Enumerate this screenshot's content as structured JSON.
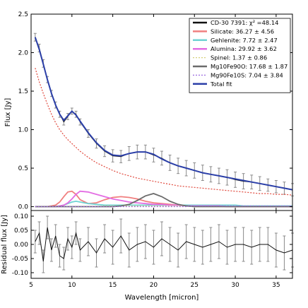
{
  "chart_data": [
    {
      "type": "line",
      "panel": "spectral fit",
      "xlabel": "",
      "ylabel": "Flux [Jy]",
      "xlim": [
        5,
        37
      ],
      "ylim": [
        -0.05,
        2.5
      ],
      "xticks": [
        "5",
        "10",
        "15",
        "20",
        "25",
        "30",
        "35"
      ],
      "yticks": [
        "0.0",
        "0.5",
        "1.0",
        "1.5",
        "2.0",
        "2.5"
      ],
      "grid": false,
      "legend_position": "top-right",
      "x": [
        5.5,
        6,
        6.5,
        7,
        7.5,
        8,
        8.5,
        9,
        9.5,
        10,
        10.5,
        11,
        12,
        13,
        14,
        15,
        16,
        17,
        18,
        19,
        20,
        21,
        22,
        23,
        24,
        25,
        26,
        27,
        28,
        29,
        30,
        31,
        32,
        33,
        34,
        35,
        36,
        37
      ],
      "series": [
        {
          "name": "CD-30 7391",
          "legend_label": "CD-30 7391:",
          "legend_stat": "χ² =48.14",
          "style": "data with error bars",
          "color": "#111111",
          "values": [
            2.2,
            2.06,
            1.86,
            1.65,
            1.47,
            1.32,
            1.2,
            1.1,
            1.17,
            1.24,
            1.2,
            1.1,
            0.95,
            0.82,
            0.72,
            0.66,
            0.65,
            0.69,
            0.71,
            0.71,
            0.67,
            0.63,
            0.57,
            0.53,
            0.5,
            0.47,
            0.44,
            0.42,
            0.4,
            0.38,
            0.35,
            0.33,
            0.32,
            0.3,
            0.28,
            0.26,
            0.24,
            0.22
          ],
          "errors": [
            0.05,
            0.05,
            0.05,
            0.04,
            0.04,
            0.04,
            0.04,
            0.04,
            0.04,
            0.04,
            0.04,
            0.04,
            0.05,
            0.06,
            0.07,
            0.08,
            0.08,
            0.09,
            0.09,
            0.09,
            0.09,
            0.09,
            0.1,
            0.1,
            0.1,
            0.1,
            0.1,
            0.1,
            0.1,
            0.1,
            0.1,
            0.1,
            0.09,
            0.09,
            0.08,
            0.08,
            0.08,
            0.08
          ]
        },
        {
          "name": "Silicate",
          "legend_label": "Silicate:",
          "legend_stat": "36.27 ± 4.56",
          "style": "solid",
          "color": "#f07f7f",
          "values": [
            0.0,
            0.0,
            0.0,
            0.0,
            0.01,
            0.02,
            0.06,
            0.13,
            0.19,
            0.2,
            0.16,
            0.09,
            0.04,
            0.05,
            0.09,
            0.12,
            0.13,
            0.12,
            0.1,
            0.07,
            0.05,
            0.04,
            0.03,
            0.02,
            0.02,
            0.01,
            0.01,
            0.01,
            0.01,
            0.0,
            0.0,
            0.0,
            0.0,
            0.0,
            0.0,
            0.0,
            0.0,
            0.0
          ]
        },
        {
          "name": "Gehlenite",
          "legend_label": "Gehlenite:",
          "legend_stat": "7.72 ± 2.47",
          "style": "solid",
          "color": "#6fd3d3",
          "values": [
            0.0,
            0.0,
            0.0,
            0.0,
            0.0,
            0.0,
            0.01,
            0.02,
            0.04,
            0.06,
            0.07,
            0.06,
            0.04,
            0.03,
            0.02,
            0.02,
            0.02,
            0.02,
            0.02,
            0.02,
            0.02,
            0.02,
            0.02,
            0.02,
            0.02,
            0.02,
            0.02,
            0.02,
            0.02,
            0.02,
            0.02,
            0.01,
            0.01,
            0.01,
            0.01,
            0.01,
            0.01,
            0.01
          ]
        },
        {
          "name": "Alumina",
          "legend_label": "Alumina:",
          "legend_stat": "29.92 ± 3.62",
          "style": "solid",
          "color": "#e36de3",
          "values": [
            0.0,
            0.0,
            0.0,
            0.0,
            0.0,
            0.0,
            0.01,
            0.02,
            0.05,
            0.1,
            0.16,
            0.2,
            0.19,
            0.16,
            0.13,
            0.1,
            0.08,
            0.06,
            0.05,
            0.04,
            0.03,
            0.03,
            0.02,
            0.02,
            0.01,
            0.01,
            0.01,
            0.01,
            0.01,
            0.0,
            0.0,
            0.0,
            0.0,
            0.0,
            0.0,
            0.0,
            0.0,
            0.0
          ]
        },
        {
          "name": "Spinel",
          "legend_label": "Spinel:",
          "legend_stat": "1.37 ± 0.86",
          "style": "dotted",
          "color": "#d6cf7a",
          "values": [
            0.0,
            0.0,
            0.0,
            0.0,
            0.0,
            0.0,
            0.0,
            0.0,
            0.0,
            0.0,
            0.0,
            0.0,
            0.0,
            0.0,
            0.01,
            0.01,
            0.01,
            0.01,
            0.01,
            0.01,
            0.01,
            0.01,
            0.01,
            0.01,
            0.01,
            0.0,
            0.0,
            0.0,
            0.0,
            0.0,
            0.0,
            0.0,
            0.0,
            0.0,
            0.0,
            0.0,
            0.0,
            0.0
          ]
        },
        {
          "name": "Mg10Fe90O",
          "legend_label": "Mg10Fe90O:",
          "legend_stat": "17.68 ± 1.87",
          "style": "solid",
          "color": "#6b6b6b",
          "values": [
            0.0,
            0.0,
            0.0,
            0.0,
            0.0,
            0.0,
            0.0,
            0.0,
            0.0,
            0.0,
            0.0,
            0.0,
            0.0,
            0.0,
            0.0,
            0.0,
            0.01,
            0.03,
            0.08,
            0.14,
            0.17,
            0.13,
            0.07,
            0.03,
            0.01,
            0.0,
            0.0,
            0.0,
            0.0,
            0.0,
            0.0,
            0.0,
            0.0,
            0.0,
            0.0,
            0.0,
            0.0,
            0.0
          ]
        },
        {
          "name": "Mg90Fe10S",
          "legend_label": "Mg90Fe10S:",
          "legend_stat": "7.04 ± 3.84",
          "style": "dotted",
          "color": "#9c6be0",
          "values": [
            0.0,
            0.0,
            0.0,
            0.0,
            0.0,
            0.0,
            0.0,
            0.0,
            0.0,
            0.0,
            0.0,
            0.0,
            0.0,
            0.0,
            0.0,
            0.0,
            0.0,
            0.0,
            0.0,
            0.0,
            0.0,
            0.0,
            0.0,
            0.0,
            0.0,
            0.01,
            0.01,
            0.01,
            0.01,
            0.01,
            0.01,
            0.01,
            0.01,
            0.01,
            0.01,
            0.01,
            0.01,
            0.01
          ]
        },
        {
          "name": "Total fit",
          "legend_label": "Total fit",
          "legend_stat": "",
          "style": "solid",
          "color": "#2b3fa8",
          "values": [
            2.2,
            2.04,
            1.85,
            1.65,
            1.47,
            1.32,
            1.2,
            1.12,
            1.18,
            1.24,
            1.19,
            1.11,
            0.96,
            0.83,
            0.73,
            0.67,
            0.66,
            0.69,
            0.71,
            0.71,
            0.68,
            0.62,
            0.57,
            0.53,
            0.5,
            0.47,
            0.44,
            0.42,
            0.4,
            0.38,
            0.36,
            0.34,
            0.32,
            0.3,
            0.28,
            0.26,
            0.24,
            0.22
          ]
        },
        {
          "name": "",
          "legend_label": "",
          "legend_stat": "",
          "style": "dotted",
          "color": "#e0483c",
          "values": [
            1.8,
            1.62,
            1.47,
            1.33,
            1.2,
            1.09,
            1.0,
            0.93,
            0.87,
            0.82,
            0.77,
            0.72,
            0.64,
            0.57,
            0.52,
            0.47,
            0.43,
            0.4,
            0.37,
            0.35,
            0.33,
            0.31,
            0.29,
            0.27,
            0.26,
            0.25,
            0.24,
            0.23,
            0.22,
            0.21,
            0.2,
            0.19,
            0.18,
            0.17,
            0.17,
            0.16,
            0.16,
            0.15
          ]
        }
      ]
    },
    {
      "type": "line",
      "panel": "residuals",
      "xlabel": "Wavelength [micron]",
      "ylabel": "Residual flux [Jy]",
      "xlim": [
        5,
        37
      ],
      "ylim": [
        -0.12,
        0.12
      ],
      "xticks": [
        "5",
        "10",
        "15",
        "20",
        "25",
        "30",
        "35"
      ],
      "yticks": [
        "0.10",
        "0.05",
        "0.00",
        "-0.05",
        "-0.10"
      ],
      "grid": false,
      "x": [
        5.5,
        6,
        6.5,
        7,
        7.5,
        8,
        8.5,
        9,
        9.5,
        10,
        10.5,
        11,
        12,
        13,
        14,
        15,
        16,
        17,
        18,
        19,
        20,
        21,
        22,
        23,
        24,
        25,
        26,
        27,
        28,
        29,
        30,
        31,
        32,
        33,
        34,
        35,
        36,
        37
      ],
      "series": [
        {
          "name": "",
          "color": "#111111",
          "values": [
            0.01,
            0.04,
            -0.06,
            0.06,
            -0.02,
            0.03,
            -0.04,
            -0.05,
            0.02,
            -0.01,
            0.04,
            -0.02,
            0.01,
            -0.03,
            0.02,
            -0.01,
            0.03,
            -0.02,
            0.0,
            0.01,
            -0.01,
            0.02,
            0.0,
            -0.02,
            0.01,
            0.0,
            -0.01,
            0.0,
            0.01,
            -0.01,
            0.0,
            0.0,
            -0.01,
            0.0,
            0.0,
            -0.02,
            -0.03,
            -0.02
          ],
          "errors": [
            0.04,
            0.04,
            0.04,
            0.04,
            0.04,
            0.04,
            0.04,
            0.04,
            0.04,
            0.04,
            0.04,
            0.04,
            0.05,
            0.05,
            0.05,
            0.06,
            0.06,
            0.06,
            0.06,
            0.06,
            0.06,
            0.06,
            0.06,
            0.06,
            0.06,
            0.06,
            0.06,
            0.06,
            0.06,
            0.06,
            0.06,
            0.06,
            0.06,
            0.06,
            0.06,
            0.06,
            0.06,
            0.06
          ]
        }
      ]
    }
  ]
}
